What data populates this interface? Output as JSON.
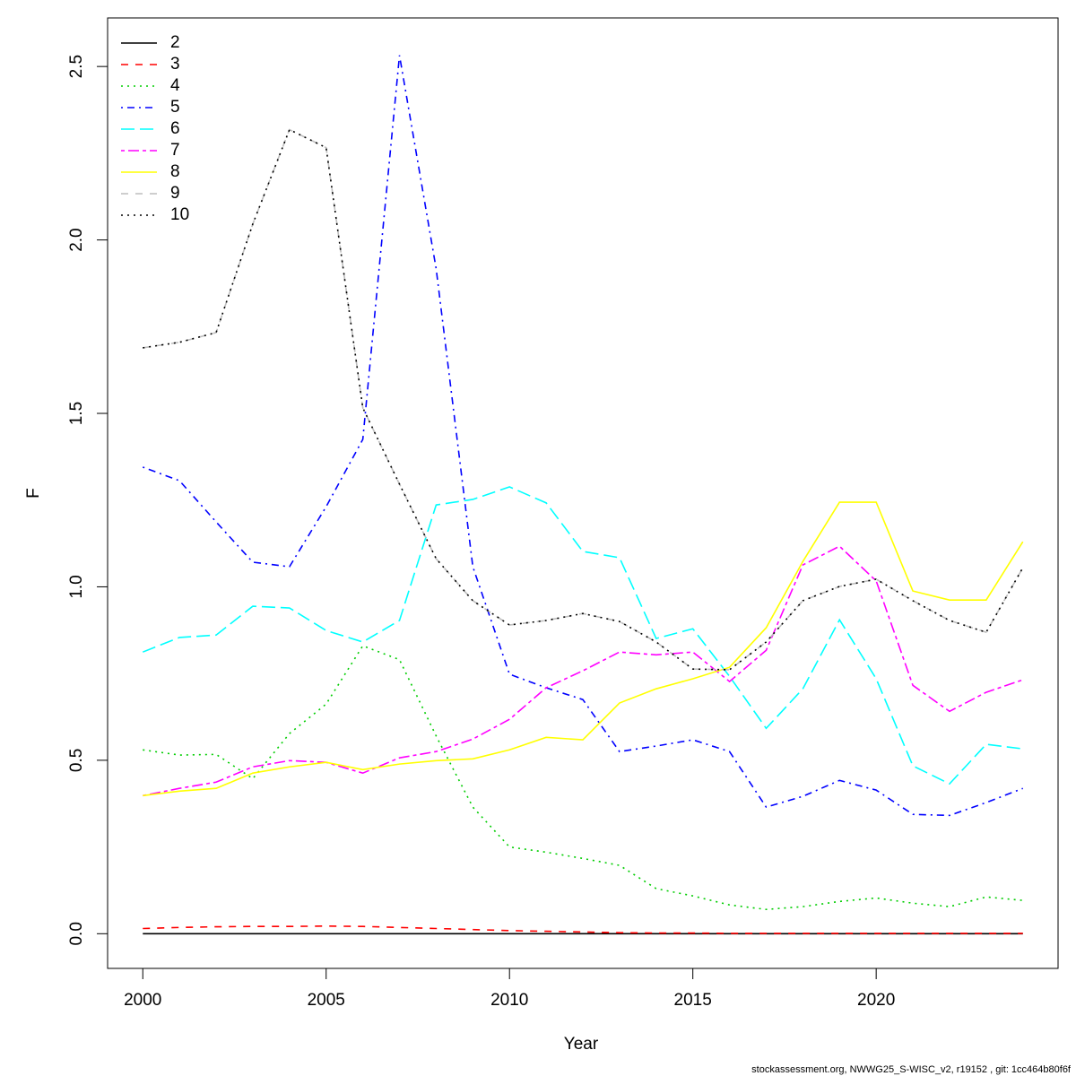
{
  "chart_data": {
    "type": "line",
    "x_label": "Year",
    "y_label": "F",
    "footer": "stockassessment.org, NWWG25_S-WISC_v2, r19152 , git: 1cc464b80f6f",
    "x": [
      2000,
      2001,
      2002,
      2003,
      2004,
      2005,
      2006,
      2007,
      2008,
      2009,
      2010,
      2011,
      2012,
      2013,
      2014,
      2015,
      2016,
      2017,
      2018,
      2019,
      2020,
      2021,
      2022,
      2023,
      2024
    ],
    "xlim": [
      1999.04,
      2024.96
    ],
    "xticks": [
      2000,
      2005,
      2010,
      2015,
      2020
    ],
    "ylim": [
      -0.1,
      2.64
    ],
    "yticks": [
      {
        "value": 0,
        "label": "0.0"
      },
      0.5,
      {
        "value": 1,
        "label": "1.0"
      },
      1.5,
      {
        "value": 2,
        "label": "2.0"
      },
      2.5
    ],
    "legend": "top-left",
    "series": [
      {
        "name": "2",
        "color": "#000000",
        "dash": "solid",
        "values": [
          0,
          0,
          0,
          0,
          0,
          0,
          0,
          0,
          0,
          0,
          0,
          0,
          0,
          0,
          0,
          0,
          0,
          0,
          0,
          0,
          0,
          0,
          0,
          0,
          0
        ]
      },
      {
        "name": "3",
        "color": "#ff0000",
        "dash": "dashed",
        "values": [
          0.015,
          0.018,
          0.02,
          0.021,
          0.021,
          0.022,
          0.021,
          0.018,
          0.015,
          0.012,
          0.009,
          0.007,
          0.005,
          0.003,
          0.002,
          0.002,
          0.001,
          0.001,
          0.001,
          0.001,
          0.001,
          0.001,
          0.001,
          0.001,
          0.001
        ]
      },
      {
        "name": "4",
        "color": "#00cd00",
        "dash": "dotted",
        "values": [
          0.53,
          0.515,
          0.517,
          0.447,
          0.577,
          0.662,
          0.83,
          0.79,
          0.57,
          0.365,
          0.25,
          0.235,
          0.217,
          0.197,
          0.13,
          0.109,
          0.083,
          0.07,
          0.078,
          0.093,
          0.103,
          0.088,
          0.078,
          0.106,
          0.096
        ]
      },
      {
        "name": "5",
        "color": "#0000ff",
        "dash": "dotdash",
        "values": [
          1.345,
          1.306,
          1.187,
          1.071,
          1.058,
          1.231,
          1.425,
          2.532,
          1.917,
          1.058,
          0.748,
          0.709,
          0.675,
          0.525,
          0.541,
          0.559,
          0.525,
          0.365,
          0.396,
          0.442,
          0.414,
          0.344,
          0.341,
          0.378,
          0.419
        ]
      },
      {
        "name": "6",
        "color": "#00ffff",
        "dash": "longdash",
        "values": [
          0.812,
          0.854,
          0.861,
          0.944,
          0.939,
          0.874,
          0.841,
          0.903,
          1.236,
          1.252,
          1.288,
          1.242,
          1.102,
          1.084,
          0.851,
          0.879,
          0.742,
          0.592,
          0.706,
          0.905,
          0.735,
          0.484,
          0.432,
          0.546,
          0.533
        ]
      },
      {
        "name": "7",
        "color": "#ff00ff",
        "dash": "twodash",
        "values": [
          0.398,
          0.419,
          0.437,
          0.481,
          0.499,
          0.494,
          0.463,
          0.507,
          0.525,
          0.561,
          0.618,
          0.709,
          0.758,
          0.812,
          0.804,
          0.812,
          0.727,
          0.817,
          1.063,
          1.117,
          1.017,
          0.716,
          0.641,
          0.696,
          0.732
        ]
      },
      {
        "name": "8",
        "color": "#ffff00",
        "dash": "solid",
        "values": [
          0.398,
          0.411,
          0.419,
          0.463,
          0.481,
          0.494,
          0.473,
          0.489,
          0.499,
          0.504,
          0.53,
          0.566,
          0.559,
          0.665,
          0.706,
          0.735,
          0.768,
          0.882,
          1.073,
          1.244,
          1.244,
          0.988,
          0.962,
          0.962,
          1.13
        ]
      },
      {
        "name": "9",
        "color": "#bebebe",
        "dash": "dashed",
        "values": [
          1.689,
          1.705,
          1.733,
          2.046,
          2.318,
          2.266,
          1.516,
          1.296,
          1.081,
          0.96,
          0.89,
          0.903,
          0.923,
          0.9,
          0.841,
          0.763,
          0.761,
          0.841,
          0.96,
          1.001,
          1.022,
          0.96,
          0.903,
          0.869,
          1.055
        ]
      },
      {
        "name": "10",
        "color": "#000000",
        "dash": "dotted",
        "values": [
          1.689,
          1.705,
          1.733,
          2.046,
          2.318,
          2.266,
          1.516,
          1.296,
          1.081,
          0.96,
          0.89,
          0.903,
          0.923,
          0.9,
          0.841,
          0.763,
          0.761,
          0.841,
          0.96,
          1.001,
          1.022,
          0.96,
          0.903,
          0.869,
          1.055
        ]
      }
    ]
  }
}
